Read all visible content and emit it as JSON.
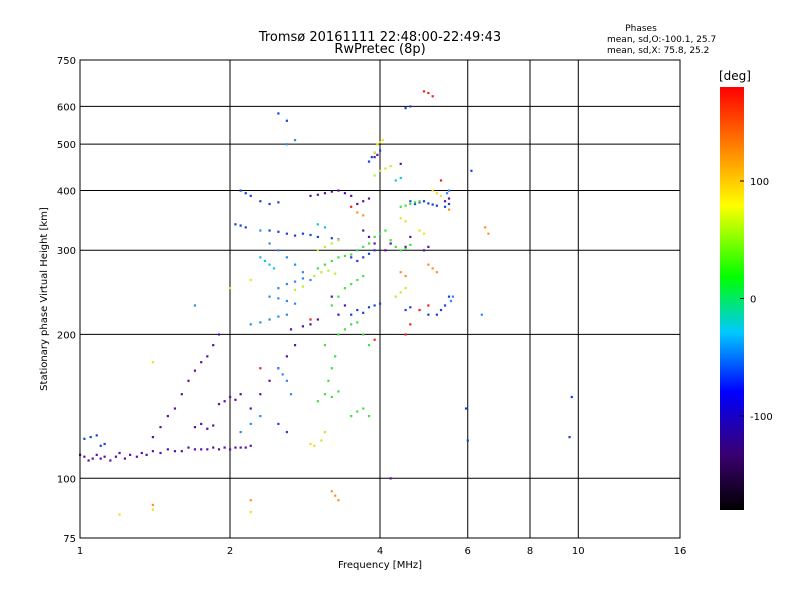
{
  "chart_data": {
    "type": "scatter",
    "title": "Tromsø 20161111 22:48:00-22:49:43",
    "subtitle": "RwPretec (8p)",
    "xlabel": "Frequency [MHz]",
    "ylabel": "Stationary phase Virtual Height [km]",
    "x_scale": "log",
    "y_scale": "log",
    "xlim": [
      1,
      16
    ],
    "ylim": [
      75,
      750
    ],
    "x_ticks": [
      1,
      2,
      4,
      6,
      8,
      10,
      16
    ],
    "y_ticks": [
      75,
      100,
      200,
      300,
      400,
      500,
      600,
      750
    ],
    "grid": true,
    "stats": {
      "title": "Phases",
      "line1": "mean, sd,O:-100.1, 25.7",
      "line2": "mean, sd,X:  75.8, 25.2"
    },
    "colorbar": {
      "label": "[deg]",
      "range": [
        -180,
        180
      ],
      "ticks": [
        100,
        0,
        -100
      ],
      "colors": [
        "#000000",
        "#3a0070",
        "#0000ff",
        "#00c8ff",
        "#00ff00",
        "#ffff00",
        "#ff8000",
        "#ff0000"
      ]
    },
    "phase_colors": {
      "purple": "#5a10a0",
      "blue": "#1a40e0",
      "lightblue": "#2a8ce8",
      "cyan": "#20c0d8",
      "green": "#40e040",
      "yellowgreen": "#b8f030",
      "yellow": "#f0e020",
      "orange": "#ff9020",
      "red": "#f02020"
    },
    "series": [
      {
        "phase": "purple",
        "points": [
          [
            1.0,
            112
          ],
          [
            1.02,
            111
          ],
          [
            1.04,
            109
          ],
          [
            1.06,
            110
          ],
          [
            1.08,
            112
          ],
          [
            1.1,
            110
          ],
          [
            1.12,
            111
          ],
          [
            1.15,
            109
          ],
          [
            1.18,
            111
          ],
          [
            1.2,
            113
          ],
          [
            1.23,
            110
          ],
          [
            1.26,
            112
          ],
          [
            1.3,
            111
          ],
          [
            1.33,
            113
          ],
          [
            1.36,
            112
          ],
          [
            1.4,
            114
          ],
          [
            1.45,
            113
          ],
          [
            1.5,
            115
          ],
          [
            1.55,
            114
          ],
          [
            1.6,
            114
          ],
          [
            1.65,
            116
          ],
          [
            1.7,
            115
          ],
          [
            1.75,
            115
          ],
          [
            1.8,
            115
          ],
          [
            1.85,
            116
          ],
          [
            1.9,
            115
          ],
          [
            1.95,
            116
          ],
          [
            2.0,
            115
          ],
          [
            2.05,
            116
          ],
          [
            2.1,
            116
          ],
          [
            2.15,
            116
          ],
          [
            2.2,
            117
          ],
          [
            1.4,
            122
          ],
          [
            1.45,
            128
          ],
          [
            1.5,
            135
          ],
          [
            1.55,
            140
          ],
          [
            1.6,
            150
          ],
          [
            1.65,
            160
          ],
          [
            1.7,
            168
          ],
          [
            1.75,
            175
          ],
          [
            1.8,
            180
          ],
          [
            1.85,
            190
          ],
          [
            1.9,
            200
          ],
          [
            1.7,
            128
          ],
          [
            1.75,
            130
          ],
          [
            1.8,
            127
          ],
          [
            1.85,
            129
          ],
          [
            1.9,
            143
          ],
          [
            1.95,
            145
          ],
          [
            2.0,
            148
          ],
          [
            2.05,
            146
          ],
          [
            2.1,
            150
          ],
          [
            2.2,
            140
          ],
          [
            2.3,
            150
          ],
          [
            2.4,
            160
          ],
          [
            2.5,
            170
          ],
          [
            2.6,
            180
          ],
          [
            2.7,
            190
          ],
          [
            2.65,
            205
          ],
          [
            2.8,
            208
          ],
          [
            2.9,
            210
          ],
          [
            3.0,
            215
          ],
          [
            2.9,
            390
          ],
          [
            3.0,
            392
          ],
          [
            3.1,
            395
          ],
          [
            3.2,
            398
          ],
          [
            3.3,
            400
          ],
          [
            3.4,
            395
          ],
          [
            3.5,
            390
          ],
          [
            3.6,
            375
          ],
          [
            3.7,
            380
          ],
          [
            3.8,
            385
          ],
          [
            3.9,
            470
          ],
          [
            3.95,
            475
          ],
          [
            3.7,
            330
          ],
          [
            3.8,
            320
          ],
          [
            3.9,
            310
          ],
          [
            4.1,
            300
          ],
          [
            4.2,
            310
          ],
          [
            4.5,
            305
          ],
          [
            4.6,
            320
          ],
          [
            4.9,
            300
          ],
          [
            5.0,
            305
          ],
          [
            5.4,
            380
          ],
          [
            5.5,
            385
          ],
          [
            4.4,
            455
          ],
          [
            4.2,
            100
          ],
          [
            3.2,
            240
          ],
          [
            3.3,
            220
          ],
          [
            3.4,
            230
          ]
        ]
      },
      {
        "phase": "blue",
        "points": [
          [
            1.02,
            121
          ],
          [
            1.05,
            122
          ],
          [
            1.08,
            123
          ],
          [
            1.1,
            117
          ],
          [
            1.12,
            118
          ],
          [
            2.1,
            400
          ],
          [
            2.15,
            395
          ],
          [
            2.2,
            390
          ],
          [
            2.3,
            380
          ],
          [
            2.4,
            375
          ],
          [
            2.5,
            378
          ],
          [
            2.05,
            340
          ],
          [
            2.1,
            338
          ],
          [
            2.15,
            335
          ],
          [
            2.4,
            330
          ],
          [
            2.5,
            328
          ],
          [
            2.6,
            325
          ],
          [
            2.7,
            322
          ],
          [
            2.8,
            325
          ],
          [
            2.9,
            323
          ],
          [
            3.0,
            320
          ],
          [
            3.2,
            318
          ],
          [
            3.3,
            316
          ],
          [
            3.5,
            290
          ],
          [
            3.6,
            285
          ],
          [
            3.7,
            290
          ],
          [
            3.8,
            295
          ],
          [
            3.9,
            300
          ],
          [
            3.5,
            220
          ],
          [
            3.6,
            225
          ],
          [
            3.7,
            222
          ],
          [
            3.8,
            228
          ],
          [
            3.9,
            230
          ],
          [
            4.0,
            232
          ],
          [
            4.5,
            225
          ],
          [
            4.6,
            228
          ],
          [
            5.0,
            220
          ],
          [
            4.6,
            380
          ],
          [
            4.7,
            375
          ],
          [
            4.8,
            378
          ],
          [
            4.9,
            380
          ],
          [
            5.0,
            376
          ],
          [
            5.1,
            374
          ],
          [
            5.2,
            372
          ],
          [
            5.4,
            370
          ],
          [
            5.5,
            375
          ],
          [
            3.8,
            460
          ],
          [
            3.85,
            470
          ],
          [
            3.9,
            480
          ],
          [
            4.0,
            485
          ],
          [
            2.5,
            580
          ],
          [
            2.6,
            560
          ],
          [
            4.5,
            595
          ],
          [
            4.6,
            600
          ],
          [
            5.5,
            240
          ],
          [
            5.4,
            230
          ],
          [
            5.3,
            225
          ],
          [
            5.2,
            220
          ],
          [
            6.1,
            440
          ],
          [
            5.95,
            140
          ],
          [
            6.0,
            120
          ],
          [
            9.7,
            148
          ],
          [
            9.6,
            122
          ],
          [
            2.5,
            130
          ],
          [
            2.6,
            125
          ]
        ]
      },
      {
        "phase": "lightblue",
        "points": [
          [
            1.7,
            230
          ],
          [
            2.3,
            330
          ],
          [
            2.4,
            310
          ],
          [
            2.5,
            300
          ],
          [
            2.6,
            290
          ],
          [
            2.7,
            280
          ],
          [
            2.8,
            270
          ],
          [
            2.9,
            260
          ],
          [
            2.5,
            250
          ],
          [
            2.6,
            255
          ],
          [
            2.7,
            258
          ],
          [
            2.8,
            262
          ],
          [
            2.4,
            240
          ],
          [
            2.5,
            238
          ],
          [
            2.6,
            235
          ],
          [
            2.7,
            232
          ],
          [
            2.2,
            210
          ],
          [
            2.3,
            212
          ],
          [
            2.4,
            215
          ],
          [
            2.5,
            218
          ],
          [
            2.6,
            220
          ],
          [
            2.5,
            170
          ],
          [
            2.55,
            165
          ],
          [
            2.6,
            160
          ],
          [
            2.65,
            150
          ],
          [
            2.1,
            125
          ],
          [
            2.2,
            130
          ],
          [
            2.3,
            135
          ],
          [
            5.5,
            400
          ],
          [
            5.45,
            395
          ],
          [
            5.55,
            235
          ],
          [
            5.6,
            240
          ],
          [
            6.4,
            220
          ],
          [
            2.6,
            500
          ],
          [
            2.7,
            510
          ]
        ]
      },
      {
        "phase": "cyan",
        "points": [
          [
            2.3,
            290
          ],
          [
            2.35,
            285
          ],
          [
            2.4,
            280
          ],
          [
            2.45,
            275
          ],
          [
            3.0,
            340
          ],
          [
            3.1,
            335
          ],
          [
            4.3,
            420
          ],
          [
            4.4,
            425
          ]
        ]
      },
      {
        "phase": "green",
        "points": [
          [
            3.0,
            275
          ],
          [
            3.1,
            280
          ],
          [
            3.2,
            285
          ],
          [
            3.3,
            290
          ],
          [
            3.4,
            292
          ],
          [
            3.5,
            294
          ],
          [
            3.6,
            300
          ],
          [
            3.7,
            305
          ],
          [
            3.8,
            310
          ],
          [
            3.9,
            320
          ],
          [
            4.0,
            325
          ],
          [
            4.1,
            330
          ],
          [
            4.2,
            315
          ],
          [
            4.3,
            305
          ],
          [
            4.4,
            300
          ],
          [
            4.5,
            302
          ],
          [
            4.6,
            308
          ],
          [
            4.4,
            370
          ],
          [
            4.5,
            372
          ],
          [
            4.6,
            375
          ],
          [
            4.7,
            378
          ],
          [
            4.8,
            380
          ],
          [
            3.0,
            145
          ],
          [
            3.1,
            150
          ],
          [
            3.2,
            148
          ],
          [
            3.3,
            152
          ],
          [
            3.15,
            160
          ],
          [
            3.2,
            170
          ],
          [
            3.25,
            180
          ],
          [
            3.1,
            190
          ],
          [
            3.3,
            200
          ],
          [
            3.4,
            205
          ],
          [
            3.5,
            210
          ],
          [
            3.6,
            212
          ],
          [
            3.7,
            200
          ],
          [
            3.8,
            190
          ],
          [
            3.2,
            230
          ],
          [
            3.3,
            240
          ],
          [
            3.4,
            250
          ],
          [
            3.5,
            255
          ],
          [
            3.6,
            260
          ],
          [
            3.7,
            265
          ],
          [
            3.8,
            135
          ],
          [
            3.5,
            135
          ],
          [
            3.6,
            138
          ],
          [
            3.7,
            140
          ]
        ]
      },
      {
        "phase": "yellowgreen",
        "points": [
          [
            2.95,
            265
          ],
          [
            3.05,
            270
          ],
          [
            3.15,
            272
          ],
          [
            3.25,
            268
          ],
          [
            3.0,
            300
          ],
          [
            3.1,
            305
          ],
          [
            3.2,
            310
          ],
          [
            3.3,
            315
          ],
          [
            3.9,
            430
          ],
          [
            4.0,
            440
          ],
          [
            4.1,
            445
          ],
          [
            4.2,
            450
          ],
          [
            2.7,
            248
          ],
          [
            2.8,
            252
          ],
          [
            4.3,
            240
          ],
          [
            4.4,
            245
          ],
          [
            4.5,
            250
          ],
          [
            3.05,
            120
          ],
          [
            3.1,
            125
          ]
        ]
      },
      {
        "phase": "yellow",
        "points": [
          [
            2.9,
            118
          ],
          [
            2.95,
            117
          ],
          [
            1.4,
            175
          ],
          [
            2.0,
            250
          ],
          [
            2.2,
            260
          ],
          [
            3.9,
            480
          ],
          [
            3.95,
            500
          ],
          [
            4.0,
            505
          ],
          [
            4.05,
            510
          ],
          [
            5.1,
            400
          ],
          [
            5.2,
            395
          ],
          [
            5.3,
            390
          ],
          [
            4.4,
            350
          ],
          [
            4.5,
            345
          ],
          [
            4.8,
            330
          ],
          [
            4.9,
            325
          ],
          [
            2.2,
            85
          ],
          [
            1.4,
            86
          ],
          [
            1.2,
            84
          ]
        ]
      },
      {
        "phase": "orange",
        "points": [
          [
            3.2,
            94
          ],
          [
            3.25,
            92
          ],
          [
            3.3,
            90
          ],
          [
            3.6,
            360
          ],
          [
            3.7,
            355
          ],
          [
            5.5,
            365
          ],
          [
            6.5,
            335
          ],
          [
            6.6,
            325
          ],
          [
            4.4,
            270
          ],
          [
            4.5,
            265
          ],
          [
            5.0,
            280
          ],
          [
            5.1,
            275
          ],
          [
            5.2,
            270
          ],
          [
            1.4,
            88
          ],
          [
            2.2,
            90
          ]
        ]
      },
      {
        "phase": "red",
        "points": [
          [
            4.9,
            645
          ],
          [
            5.0,
            640
          ],
          [
            5.1,
            630
          ],
          [
            3.5,
            370
          ],
          [
            4.8,
            225
          ],
          [
            5.0,
            230
          ],
          [
            4.5,
            200
          ],
          [
            4.6,
            210
          ],
          [
            3.9,
            195
          ],
          [
            2.3,
            170
          ],
          [
            2.9,
            215
          ],
          [
            5.3,
            420
          ]
        ]
      }
    ]
  }
}
